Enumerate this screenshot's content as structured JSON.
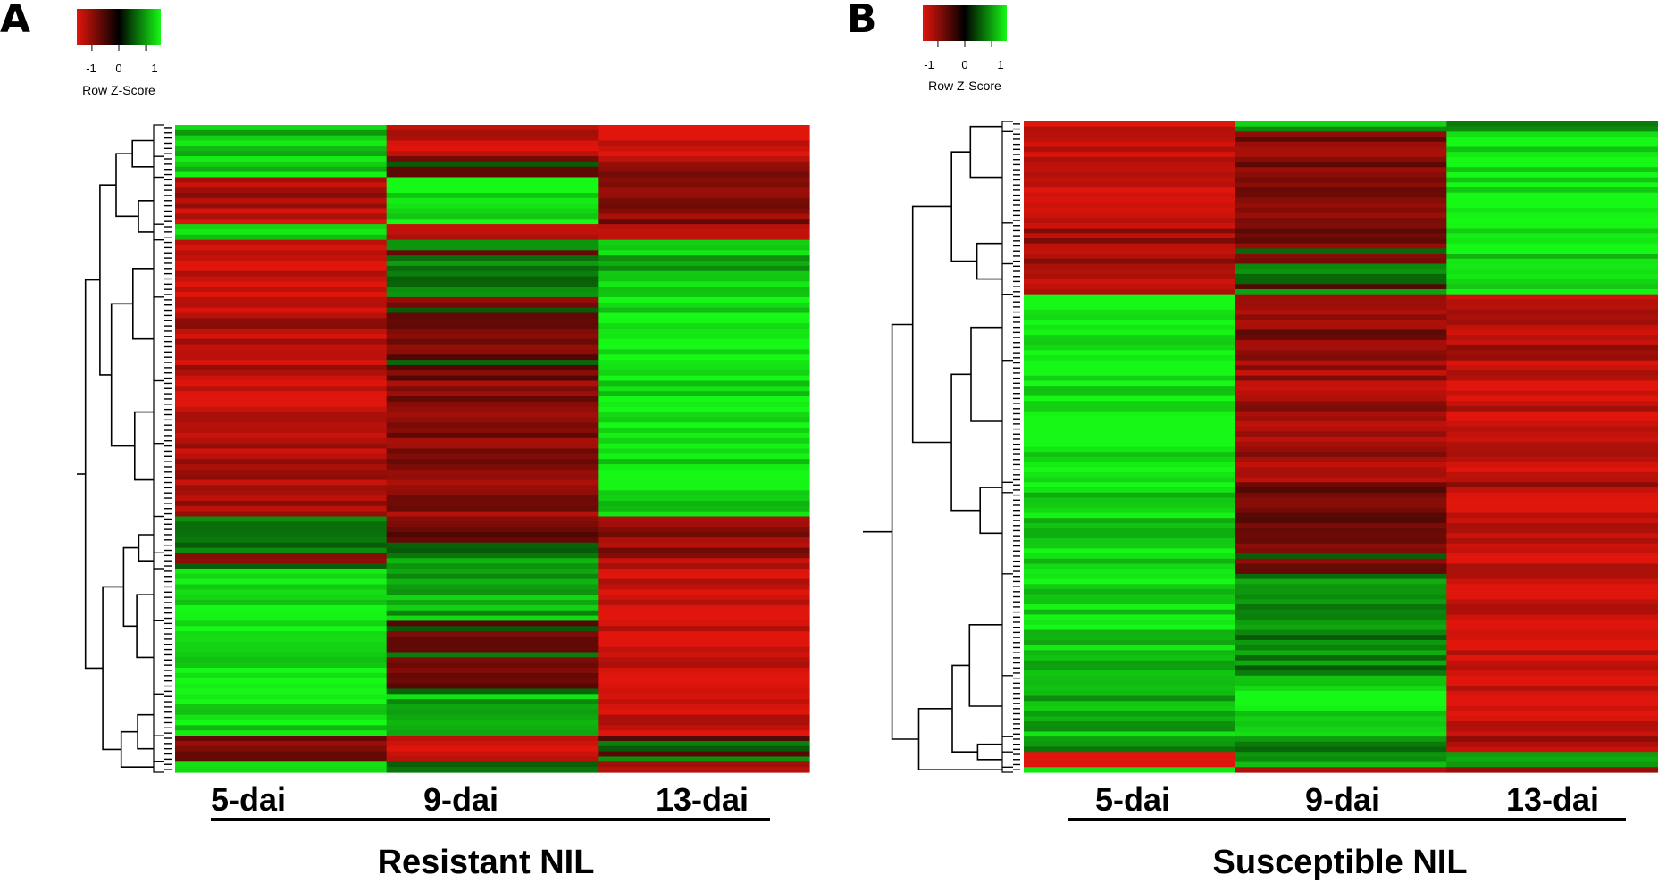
{
  "figure": {
    "colors": {
      "low": "#e0150c",
      "mid": "#000000",
      "high": "#16f916"
    }
  },
  "chart_data": [
    {
      "type": "heatmap",
      "panel": "A",
      "title": "Resistant NIL",
      "columns": [
        "5-dai",
        "9-dai",
        "13-dai"
      ],
      "color_key": {
        "label": "Row Z-Score",
        "ticks": [
          "-1",
          "0",
          "1"
        ],
        "range": [
          -1.5,
          1.5
        ]
      },
      "row_clusters": [
        {
          "rows": 6,
          "values": [
            1.0,
            -1.2,
            -1.5
          ]
        },
        {
          "rows": 4,
          "values": [
            1.2,
            -0.4,
            -0.8
          ]
        },
        {
          "rows": 9,
          "values": [
            -1.0,
            1.4,
            -0.6
          ]
        },
        {
          "rows": 3,
          "values": [
            1.3,
            -0.8,
            -1.0
          ]
        },
        {
          "rows": 11,
          "values": [
            -1.4,
            0.2,
            0.9
          ]
        },
        {
          "rows": 16,
          "values": [
            -1.0,
            -0.3,
            1.3
          ]
        },
        {
          "rows": 12,
          "values": [
            -1.2,
            -0.6,
            1.3
          ]
        },
        {
          "rows": 14,
          "values": [
            -0.9,
            -0.7,
            1.2
          ]
        },
        {
          "rows": 7,
          "values": [
            0.3,
            -0.2,
            -0.6
          ]
        },
        {
          "rows": 3,
          "values": [
            -0.2,
            0.6,
            -0.9
          ]
        },
        {
          "rows": 10,
          "values": [
            1.3,
            0.8,
            -1.4
          ]
        },
        {
          "rows": 14,
          "values": [
            1.4,
            -0.1,
            -1.4
          ]
        },
        {
          "rows": 8,
          "values": [
            1.2,
            0.9,
            -1.3
          ]
        },
        {
          "rows": 5,
          "values": [
            -0.6,
            -1.4,
            0.2
          ]
        },
        {
          "rows": 2,
          "values": [
            1.3,
            0.3,
            -1.1
          ]
        }
      ]
    },
    {
      "type": "heatmap",
      "panel": "B",
      "title": "Susceptible NIL",
      "columns": [
        "5-dai",
        "9-dai",
        "13-dai"
      ],
      "color_key": {
        "label": "Row Z-Score",
        "ticks": [
          "-1",
          "0",
          "1"
        ],
        "range": [
          -1.5,
          1.5
        ]
      },
      "row_clusters": [
        {
          "rows": 2,
          "values": [
            -1.4,
            0.7,
            0.6
          ]
        },
        {
          "rows": 18,
          "values": [
            -1.2,
            -0.5,
            1.4
          ]
        },
        {
          "rows": 8,
          "values": [
            -0.9,
            -0.3,
            1.3
          ]
        },
        {
          "rows": 6,
          "values": [
            -1.2,
            0.3,
            1.2
          ]
        },
        {
          "rows": 13,
          "values": [
            1.4,
            -0.6,
            -1.0
          ]
        },
        {
          "rows": 24,
          "values": [
            1.4,
            -0.9,
            -1.3
          ]
        },
        {
          "rows": 2,
          "values": [
            1.3,
            -0.4,
            -0.9
          ]
        },
        {
          "rows": 16,
          "values": [
            1.1,
            -0.3,
            -1.3
          ]
        },
        {
          "rows": 20,
          "values": [
            1.1,
            0.4,
            -1.4
          ]
        },
        {
          "rows": 12,
          "values": [
            0.9,
            1.3,
            -1.4
          ]
        },
        {
          "rows": 3,
          "values": [
            0.6,
            0.5,
            -1.1
          ]
        },
        {
          "rows": 3,
          "values": [
            -1.4,
            0.6,
            0.4
          ]
        },
        {
          "rows": 1,
          "values": [
            1.0,
            -0.6,
            -0.3
          ]
        }
      ]
    }
  ]
}
